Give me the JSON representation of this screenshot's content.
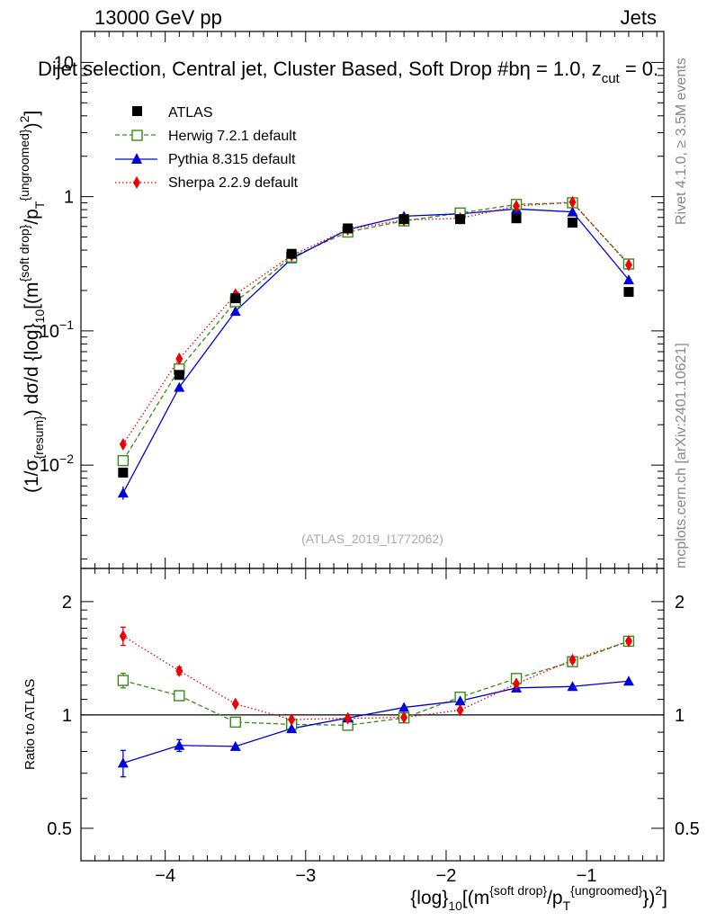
{
  "header": {
    "energy_label": "13000 GeV pp",
    "process_label": "Jets",
    "title": "Dijet selection, Central jet, Cluster Based, Soft Drop #beta = 1.0, z_{cut} = 0.",
    "title_main": "Dijet selection, Central jet, Cluster Based, Soft Drop #b",
    "title_eta": "η = 1.0, z",
    "title_cut": "cut",
    "title_end": " = 0.",
    "watermark": "(ATLAS_2019_I1772062)",
    "side_rivet": "Rivet 4.1.0, ≥ 3.5M events",
    "side_mcplots": "mcplots.cern.ch [arXiv:2401.10621]"
  },
  "colors": {
    "atlas": "#000000",
    "herwig": "#3a8a1a",
    "pythia": "#0000dd",
    "sherpa": "#ee0000"
  },
  "chart_data": [
    {
      "type": "scatter",
      "panel": "main",
      "ylabel_text": "(1/σ{resum}) dσ/d {log}10[(m{soft drop}/pT{ungroomed})2]",
      "ylabel_parts": {
        "a": "(1/σ",
        "b": "{resum}",
        "c": ") dσ/d {log}",
        "d": "10",
        "e": "[(m",
        "f": "{soft drop}",
        "g": "/p",
        "h": "T",
        "i": "{ungroomed}",
        "j": ")",
        "k": "2",
        "l": "]"
      },
      "yscale": "log",
      "xlim": [
        -4.6,
        -0.45
      ],
      "ylim": [
        0.0017,
        17
      ],
      "y_ticks": [
        {
          "value": 0.01,
          "base": "10",
          "exp": "−2"
        },
        {
          "value": 0.1,
          "base": "10",
          "exp": "−1"
        },
        {
          "value": 1,
          "base": "1",
          "exp": ""
        },
        {
          "value": 10,
          "base": "10",
          "exp": ""
        }
      ],
      "x": [
        -4.3,
        -3.9,
        -3.5,
        -3.1,
        -2.7,
        -2.3,
        -1.9,
        -1.5,
        -1.1,
        -0.7
      ],
      "series": [
        {
          "name": "ATLAS",
          "marker": "square-filled",
          "line": "none",
          "values": [
            0.0088,
            0.047,
            0.175,
            0.375,
            0.58,
            0.68,
            0.68,
            0.69,
            0.64,
            0.195
          ]
        },
        {
          "name": "Herwig 7.2.1 default",
          "marker": "square-open",
          "line": "dashed",
          "values": [
            0.0108,
            0.052,
            0.165,
            0.355,
            0.545,
            0.66,
            0.755,
            0.875,
            0.9,
            0.315
          ]
        },
        {
          "name": "Pythia 8.315 default",
          "marker": "triangle",
          "line": "solid",
          "values": [
            0.0062,
            0.038,
            0.14,
            0.345,
            0.57,
            0.715,
            0.745,
            0.81,
            0.77,
            0.24
          ]
        },
        {
          "name": "Sherpa 2.2.9 default",
          "marker": "diamond",
          "line": "dotted",
          "values": [
            0.0143,
            0.062,
            0.187,
            0.365,
            0.57,
            0.67,
            0.69,
            0.85,
            0.91,
            0.31
          ]
        }
      ],
      "legend": {
        "placement": "top-left",
        "entries": [
          "ATLAS",
          "Herwig 7.2.1 default",
          "Pythia 8.315 default",
          "Sherpa 2.2.9 default"
        ]
      }
    },
    {
      "type": "scatter",
      "panel": "ratio",
      "ylabel": "Ratio to ATLAS",
      "xlabel_parts": {
        "a": "{log}",
        "b": "10",
        "c": "[(m",
        "d": "{soft drop}",
        "e": "/p",
        "f": "T",
        "g": "{ungroomed}",
        "h": "})",
        "i": "2",
        "j": "]"
      },
      "xlabel_text": "{log}10[(m{soft drop}/pT{ungroomed}})2]",
      "yscale": "log",
      "xlim": [
        -4.6,
        -0.45
      ],
      "ylim": [
        0.41,
        2.45
      ],
      "x_ticks": [
        {
          "value": -4,
          "label": "−4"
        },
        {
          "value": -3,
          "label": "−3"
        },
        {
          "value": -2,
          "label": "−2"
        },
        {
          "value": -1,
          "label": "−1"
        }
      ],
      "y_ticks": [
        {
          "value": 0.5,
          "label": "0.5"
        },
        {
          "value": 1,
          "label": "1"
        },
        {
          "value": 2,
          "label": "2"
        }
      ],
      "reference_line": 1,
      "x": [
        -4.3,
        -3.9,
        -3.5,
        -3.1,
        -2.7,
        -2.3,
        -1.9,
        -1.5,
        -1.1,
        -0.7
      ],
      "series": [
        {
          "name": "Herwig 7.2.1 default",
          "values": [
            1.235,
            1.125,
            0.957,
            0.944,
            0.939,
            0.982,
            1.115,
            1.25,
            1.385,
            1.57
          ],
          "errors": [
            0.055,
            0.02,
            0.01,
            0.01,
            0.01,
            0.01,
            0.01,
            0.01,
            0.015,
            0.02
          ]
        },
        {
          "name": "Pythia 8.315 default",
          "values": [
            0.745,
            0.83,
            0.825,
            0.92,
            0.982,
            1.047,
            1.09,
            1.18,
            1.19,
            1.23
          ],
          "errors": [
            0.06,
            0.03,
            0.01,
            0.01,
            0.01,
            0.01,
            0.01,
            0.01,
            0.01,
            0.01
          ]
        },
        {
          "name": "Sherpa 2.2.9 default",
          "values": [
            1.62,
            1.31,
            1.07,
            0.972,
            0.98,
            0.985,
            1.03,
            1.21,
            1.4,
            1.57
          ],
          "errors": [
            0.09,
            0.03,
            0.01,
            0.01,
            0.01,
            0.01,
            0.01,
            0.01,
            0.02,
            0.02
          ]
        }
      ]
    }
  ]
}
